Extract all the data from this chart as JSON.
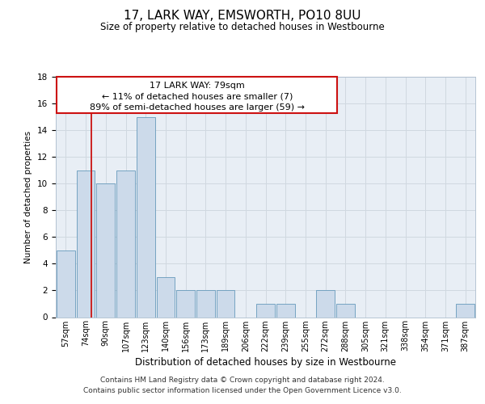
{
  "title": "17, LARK WAY, EMSWORTH, PO10 8UU",
  "subtitle": "Size of property relative to detached houses in Westbourne",
  "xlabel": "Distribution of detached houses by size in Westbourne",
  "ylabel": "Number of detached properties",
  "bar_labels": [
    "57sqm",
    "74sqm",
    "90sqm",
    "107sqm",
    "123sqm",
    "140sqm",
    "156sqm",
    "173sqm",
    "189sqm",
    "206sqm",
    "222sqm",
    "239sqm",
    "255sqm",
    "272sqm",
    "288sqm",
    "305sqm",
    "321sqm",
    "338sqm",
    "354sqm",
    "371sqm",
    "387sqm"
  ],
  "bar_values": [
    5,
    11,
    10,
    11,
    15,
    3,
    2,
    2,
    2,
    0,
    1,
    1,
    0,
    2,
    1,
    0,
    0,
    0,
    0,
    0,
    1
  ],
  "bar_color": "#ccdaea",
  "bar_edgecolor": "#6699bb",
  "grid_color": "#d0d8e0",
  "background_color": "#e8eef5",
  "red_line_x": 1.28,
  "annotation_line1": "17 LARK WAY: 79sqm",
  "annotation_line2": "← 11% of detached houses are smaller (7)",
  "annotation_line3": "89% of semi-detached houses are larger (59) →",
  "footer_line1": "Contains HM Land Registry data © Crown copyright and database right 2024.",
  "footer_line2": "Contains public sector information licensed under the Open Government Licence v3.0.",
  "ylim": [
    0,
    18
  ],
  "yticks": [
    0,
    2,
    4,
    6,
    8,
    10,
    12,
    14,
    16,
    18
  ]
}
